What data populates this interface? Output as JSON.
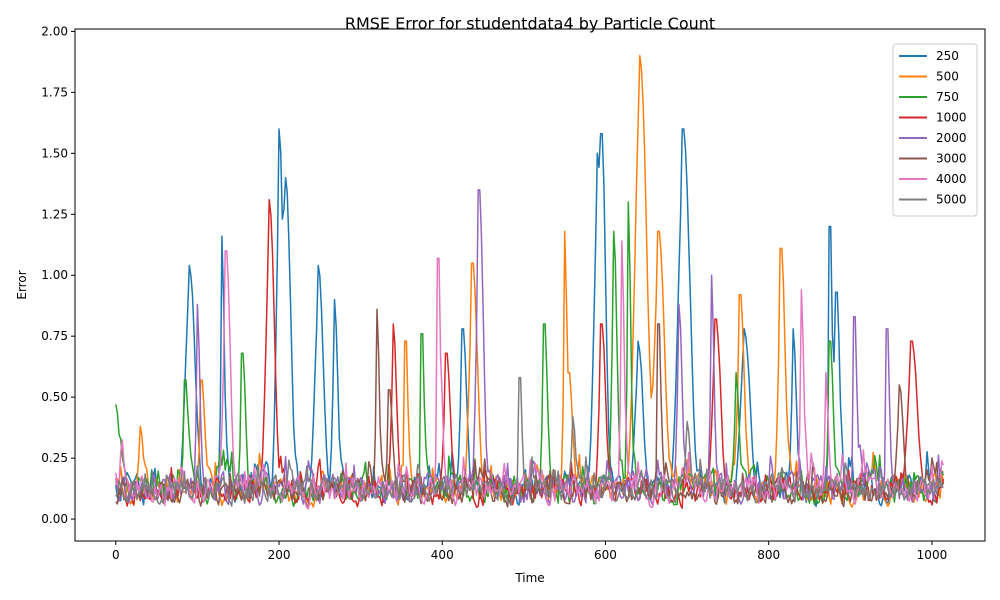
{
  "chart_data": {
    "type": "line",
    "title": "RMSE Error for studentdata4 by Particle Count",
    "xlabel": "Time",
    "ylabel": "Error",
    "xlim": [
      -50,
      1065
    ],
    "ylim": [
      -0.09,
      2.01
    ],
    "xticks": [
      0,
      200,
      400,
      600,
      800,
      1000
    ],
    "yticks": [
      0.0,
      0.25,
      0.5,
      0.75,
      1.0,
      1.25,
      1.5,
      1.75,
      2.0
    ],
    "xtick_labels": [
      "0",
      "200",
      "400",
      "600",
      "800",
      "1000"
    ],
    "ytick_labels": [
      "0.00",
      "0.25",
      "0.50",
      "0.75",
      "1.00",
      "1.25",
      "1.50",
      "1.75",
      "2.00"
    ],
    "grid": false,
    "legend_position": "top-right",
    "series": [
      {
        "name": "250",
        "color": "#1f77b4",
        "base": 0.12,
        "noise": 0.09,
        "peaks": [
          [
            90,
            1.04,
            6
          ],
          [
            130,
            1.16,
            2
          ],
          [
            200,
            1.6,
            4
          ],
          [
            208,
            1.4,
            5
          ],
          [
            248,
            1.04,
            5
          ],
          [
            268,
            0.9,
            3
          ],
          [
            425,
            0.78,
            4
          ],
          [
            590,
            1.5,
            5
          ],
          [
            595,
            1.58,
            4
          ],
          [
            640,
            0.73,
            5
          ],
          [
            695,
            1.6,
            7
          ],
          [
            770,
            0.78,
            6
          ],
          [
            830,
            0.78,
            3
          ],
          [
            875,
            1.2,
            2
          ],
          [
            883,
            0.93,
            3
          ]
        ]
      },
      {
        "name": "500",
        "color": "#ff7f0e",
        "base": 0.12,
        "noise": 0.09,
        "peaks": [
          [
            30,
            0.38,
            3
          ],
          [
            105,
            0.57,
            3
          ],
          [
            355,
            0.73,
            2
          ],
          [
            437,
            1.05,
            5
          ],
          [
            550,
            1.18,
            2
          ],
          [
            555,
            0.6,
            4
          ],
          [
            642,
            1.9,
            7
          ],
          [
            665,
            1.18,
            6
          ],
          [
            765,
            0.92,
            4
          ],
          [
            815,
            1.11,
            4
          ]
        ]
      },
      {
        "name": "750",
        "color": "#2ca02c",
        "base": 0.12,
        "noise": 0.09,
        "peaks": [
          [
            0,
            0.47,
            4
          ],
          [
            85,
            0.57,
            3
          ],
          [
            155,
            0.68,
            3
          ],
          [
            375,
            0.76,
            2
          ],
          [
            525,
            0.8,
            3
          ],
          [
            610,
            1.18,
            3
          ],
          [
            628,
            1.3,
            2
          ],
          [
            760,
            0.6,
            3
          ],
          [
            875,
            0.73,
            3
          ]
        ]
      },
      {
        "name": "1000",
        "color": "#d62728",
        "base": 0.11,
        "noise": 0.08,
        "peaks": [
          [
            188,
            1.31,
            5
          ],
          [
            340,
            0.8,
            3
          ],
          [
            405,
            0.68,
            4
          ],
          [
            595,
            0.8,
            4
          ],
          [
            735,
            0.82,
            5
          ],
          [
            975,
            0.73,
            6
          ]
        ]
      },
      {
        "name": "2000",
        "color": "#9467bd",
        "base": 0.12,
        "noise": 0.09,
        "peaks": [
          [
            100,
            0.88,
            2
          ],
          [
            445,
            1.35,
            4
          ],
          [
            690,
            0.88,
            3
          ],
          [
            730,
            1.0,
            2
          ],
          [
            905,
            0.83,
            2
          ],
          [
            945,
            0.78,
            2
          ]
        ]
      },
      {
        "name": "3000",
        "color": "#8c564b",
        "base": 0.11,
        "noise": 0.08,
        "peaks": [
          [
            320,
            0.86,
            2
          ],
          [
            335,
            0.53,
            3
          ],
          [
            665,
            0.8,
            2
          ],
          [
            960,
            0.55,
            4
          ]
        ]
      },
      {
        "name": "4000",
        "color": "#e377c2",
        "base": 0.12,
        "noise": 0.09,
        "peaks": [
          [
            135,
            1.1,
            4
          ],
          [
            395,
            1.07,
            2
          ],
          [
            620,
            1.14,
            2
          ],
          [
            840,
            0.94,
            2
          ],
          [
            870,
            0.6,
            2
          ]
        ]
      },
      {
        "name": "5000",
        "color": "#7f7f7f",
        "base": 0.12,
        "noise": 0.08,
        "peaks": [
          [
            495,
            0.58,
            2
          ],
          [
            560,
            0.42,
            3
          ],
          [
            700,
            0.4,
            3
          ]
        ]
      }
    ]
  }
}
